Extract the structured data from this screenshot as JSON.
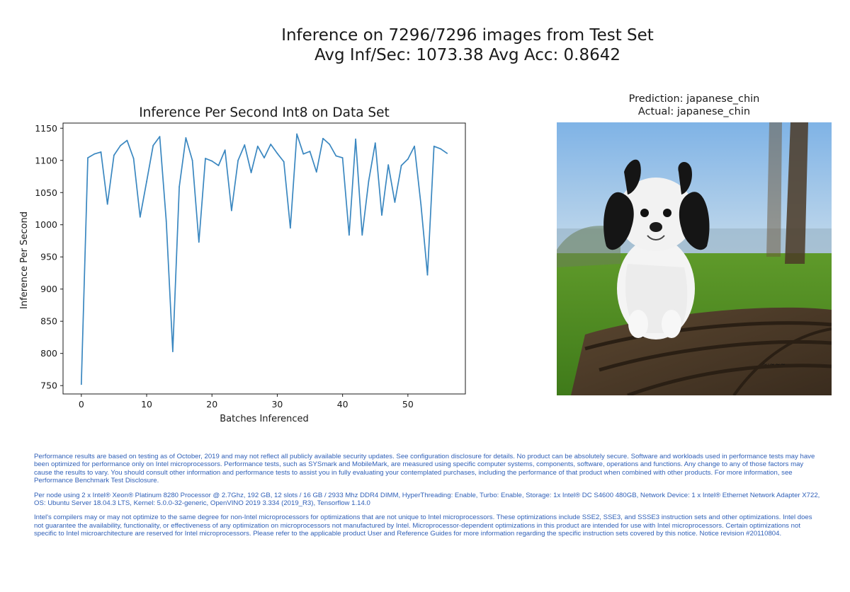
{
  "suptitle": {
    "line1": "Inference on 7296/7296 images from Test Set",
    "line2": "Avg Inf/Sec: 1073.38 Avg Acc: 0.8642"
  },
  "prediction_panel": {
    "prediction": "Prediction: japanese_chin",
    "actual": "Actual: japanese_chin",
    "image_subject": "japanese chin dog on a park bench"
  },
  "chart_data": {
    "type": "line",
    "title": "Inference Per Second Int8 on Data Set",
    "xlabel": "Batches Inferenced",
    "ylabel": "Inference Per Second",
    "xlim": [
      -2.8,
      58.8
    ],
    "ylim": [
      737,
      1158
    ],
    "xticks": [
      0,
      10,
      20,
      30,
      40,
      50
    ],
    "yticks": [
      750,
      800,
      850,
      900,
      950,
      1000,
      1050,
      1100,
      1150
    ],
    "line_color": "#3a87c0",
    "x": [
      0,
      1,
      2,
      3,
      4,
      5,
      6,
      7,
      8,
      9,
      10,
      11,
      12,
      13,
      14,
      15,
      16,
      17,
      18,
      19,
      20,
      21,
      22,
      23,
      24,
      25,
      26,
      27,
      28,
      29,
      30,
      31,
      32,
      33,
      34,
      35,
      36,
      37,
      38,
      39,
      40,
      41,
      42,
      43,
      44,
      45,
      46,
      47,
      48,
      49,
      50,
      51,
      52,
      53,
      54,
      55,
      56
    ],
    "y": [
      752,
      1104,
      1110,
      1113,
      1032,
      1108,
      1123,
      1131,
      1103,
      1012,
      1067,
      1123,
      1137,
      1006,
      803,
      1059,
      1135,
      1100,
      973,
      1103,
      1099,
      1092,
      1116,
      1022,
      1100,
      1124,
      1081,
      1122,
      1104,
      1125,
      1111,
      1098,
      995,
      1141,
      1110,
      1114,
      1082,
      1134,
      1125,
      1107,
      1104,
      984,
      1133,
      984,
      1068,
      1127,
      1015,
      1093,
      1035,
      1092,
      1102,
      1122,
      1031,
      922,
      1122,
      1118,
      1111
    ]
  },
  "disclaimer": {
    "p1": "Performance results are based on testing as of October, 2019 and may not reflect all publicly available security updates. See configuration disclosure for details. No product can be absolutely secure. Software and workloads used in performance tests may have been optimized for performance only on Intel microprocessors. Performance tests, such as SYSmark and MobileMark, are measured using specific computer systems, components, software, operations and functions. Any change to any of those factors may cause the results to vary. You should consult other information and performance tests to assist you in fully evaluating your contemplated purchases, including the performance of that product when combined with other products. For more information, see Performance Benchmark Test Disclosure.",
    "p2": "Per node using 2 x Intel® Xeon® Platinum 8280 Processor @ 2.7Ghz, 192 GB, 12 slots / 16 GB / 2933 Mhz DDR4 DIMM, HyperThreading: Enable, Turbo: Enable, Storage: 1x Intel® DC S4600 480GB, Network Device: 1 x Intel® Ethernet Network Adapter X722, OS: Ubuntu Server 18.04.3 LTS, Kernel: 5.0.0-32-generic, OpenVINO 2019 3.334 (2019_R3), Tensorflow 1.14.0",
    "p3": "Intel's compilers may or may not optimize to the same degree for non-Intel microprocessors for optimizations that are not unique to Intel microprocessors. These optimizations include SSE2, SSE3, and SSSE3 instruction sets and other optimizations. Intel does not guarantee the availability, functionality, or effectiveness of any optimization on microprocessors not manufactured by Intel. Microprocessor-dependent optimizations in this product are intended for use with Intel microprocessors. Certain optimizations not specific to Intel microarchitecture are reserved for Intel microprocessors. Please refer to the applicable product User and Reference Guides for more information regarding the specific instruction sets covered by this notice. Notice revision #20110804."
  }
}
